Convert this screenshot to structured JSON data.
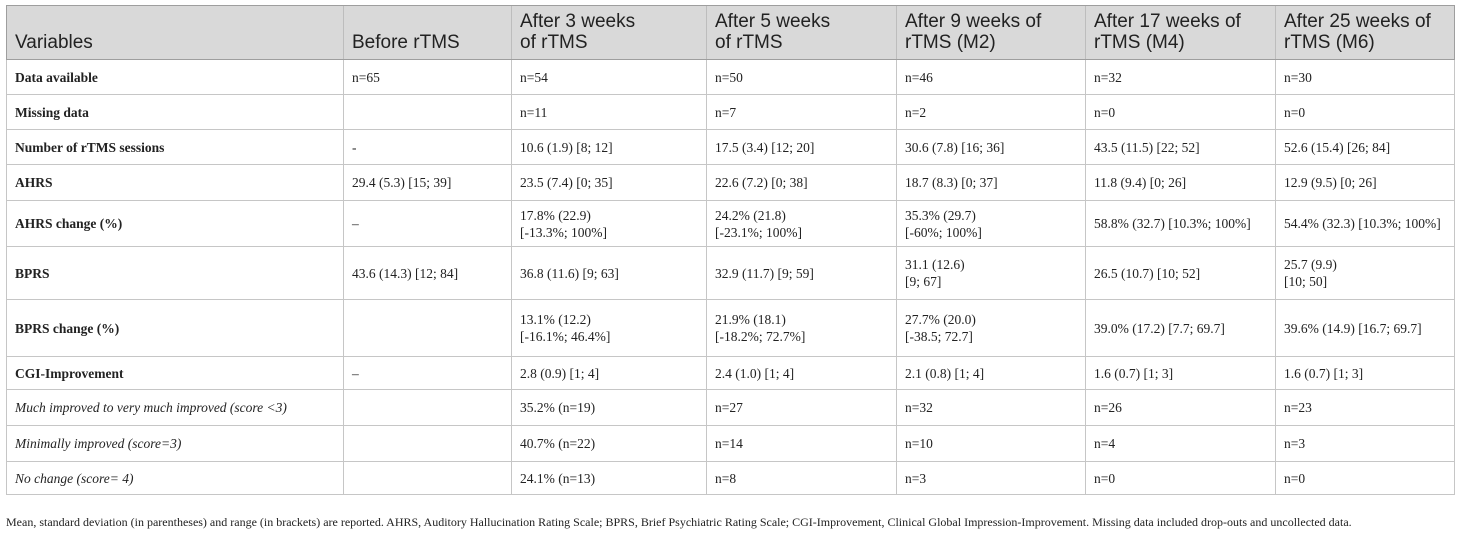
{
  "headers": [
    "Variables",
    "Before rTMS",
    "After 3 weeks\nof rTMS",
    "After 5 weeks\nof rTMS",
    "After 9 weeks of\nrTMS (M2)",
    "After 17 weeks of\nrTMS (M4)",
    "After 25 weeks of\nrTMS (M6)"
  ],
  "rows": [
    {
      "label": "Data available",
      "style": "bold",
      "cells": [
        "n=65",
        "n=54",
        "n=50",
        "n=46",
        "n=32",
        "n=30"
      ]
    },
    {
      "label": "Missing data",
      "style": "bold",
      "cells": [
        "",
        "n=11",
        "n=7",
        "n=2",
        "n=0",
        "n=0"
      ]
    },
    {
      "label": "Number of rTMS sessions",
      "style": "bold",
      "cells": [
        "-",
        "10.6 (1.9) [8; 12]",
        "17.5 (3.4) [12; 20]",
        "30.6 (7.8) [16; 36]",
        "43.5 (11.5) [22; 52]",
        "52.6 (15.4) [26; 84]"
      ]
    },
    {
      "label": "AHRS",
      "style": "bold",
      "cells": [
        "29.4 (5.3) [15; 39]",
        "23.5 (7.4) [0; 35]",
        "22.6 (7.2) [0; 38]",
        "18.7 (8.3) [0; 37]",
        "11.8 (9.4) [0; 26]",
        "12.9 (9.5) [0; 26]"
      ]
    },
    {
      "label": "AHRS change (%)",
      "style": "bold",
      "cells": [
        "–",
        "17.8% (22.9)\n[-13.3%; 100%]",
        "24.2% (21.8)\n[-23.1%; 100%]",
        "35.3% (29.7)\n[-60%; 100%]",
        "58.8% (32.7) [10.3%; 100%]",
        "54.4% (32.3) [10.3%; 100%]"
      ]
    },
    {
      "label": "BPRS",
      "style": "bold",
      "cells": [
        "43.6 (14.3) [12; 84]",
        "36.8 (11.6) [9; 63]",
        "32.9 (11.7) [9; 59]",
        "31.1 (12.6)\n[9; 67]",
        "26.5 (10.7) [10; 52]",
        "25.7 (9.9)\n[10; 50]"
      ]
    },
    {
      "label": "BPRS change (%)",
      "style": "bold",
      "cells": [
        "",
        "13.1% (12.2)\n[-16.1%; 46.4%]",
        "21.9% (18.1)\n[-18.2%; 72.7%]",
        "27.7% (20.0)\n[-38.5; 72.7]",
        "39.0% (17.2) [7.7; 69.7]",
        "39.6% (14.9) [16.7; 69.7]"
      ]
    },
    {
      "label": "CGI-Improvement",
      "style": "bold",
      "cells": [
        "–",
        "2.8 (0.9) [1; 4]",
        "2.4 (1.0) [1; 4]",
        "2.1 (0.8) [1; 4]",
        "1.6 (0.7) [1; 3]",
        "1.6 (0.7) [1; 3]"
      ]
    },
    {
      "label": "Much improved to very much improved (score <3)",
      "style": "italic",
      "cells": [
        "",
        "35.2% (n=19)",
        "n=27",
        "n=32",
        "n=26",
        "n=23"
      ]
    },
    {
      "label": "Minimally improved (score=3)",
      "style": "italic",
      "cells": [
        "",
        "40.7% (n=22)",
        "n=14",
        "n=10",
        "n=4",
        "n=3"
      ]
    },
    {
      "label": "No change (score= 4)",
      "style": "italic",
      "cells": [
        "",
        "24.1% (n=13)",
        "n=8",
        "n=3",
        "n=0",
        "n=0"
      ]
    }
  ],
  "footnote": "Mean, standard deviation (in parentheses) and range (in brackets) are reported. AHRS, Auditory Hallucination Rating Scale; BPRS, Brief Psychiatric Rating Scale; CGI-Improvement, Clinical Global Impression-Improvement. Missing data included drop-outs and uncollected data."
}
